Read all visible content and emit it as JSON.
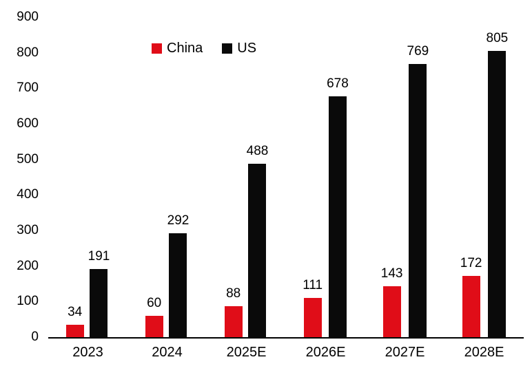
{
  "chart_data": {
    "type": "bar",
    "title": "",
    "xlabel": "",
    "ylabel": "",
    "categories": [
      "2023",
      "2024",
      "2025E",
      "2026E",
      "2027E",
      "2028E"
    ],
    "series": [
      {
        "name": "China",
        "color": "#e00d18",
        "values": [
          34,
          60,
          88,
          111,
          143,
          172
        ]
      },
      {
        "name": "US",
        "color": "#0a0a0a",
        "values": [
          191,
          292,
          488,
          678,
          769,
          805
        ]
      }
    ],
    "ylim": [
      0,
      900
    ],
    "yticks": [
      0,
      100,
      200,
      300,
      400,
      500,
      600,
      700,
      800,
      900
    ],
    "grid": false,
    "legend_position": "top-left-inset",
    "value_labels": true,
    "axis_line_color": "#000000",
    "background_color": "#ffffff"
  }
}
